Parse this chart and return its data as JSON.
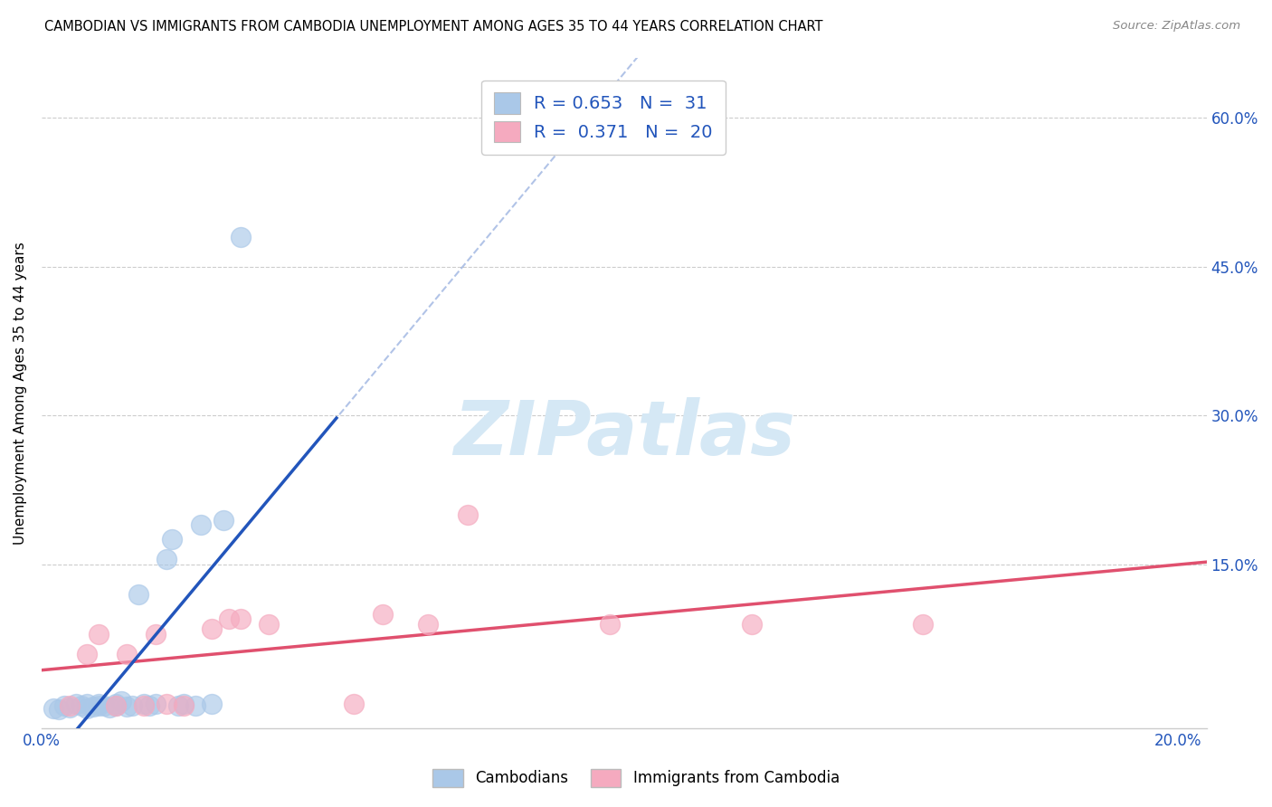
{
  "title": "CAMBODIAN VS IMMIGRANTS FROM CAMBODIA UNEMPLOYMENT AMONG AGES 35 TO 44 YEARS CORRELATION CHART",
  "source": "Source: ZipAtlas.com",
  "ylabel": "Unemployment Among Ages 35 to 44 years",
  "xlim": [
    0.0,
    0.205
  ],
  "ylim": [
    -0.015,
    0.66
  ],
  "xtick_positions": [
    0.0,
    0.05,
    0.1,
    0.15,
    0.2
  ],
  "xtick_labels": [
    "0.0%",
    "",
    "",
    "",
    "20.0%"
  ],
  "ytick_positions": [
    0.0,
    0.15,
    0.3,
    0.45,
    0.6
  ],
  "ytick_labels": [
    "",
    "15.0%",
    "30.0%",
    "45.0%",
    "60.0%"
  ],
  "blue_fill_color": "#aac8e8",
  "blue_edge_color": "#aac8e8",
  "pink_fill_color": "#f5aabf",
  "pink_edge_color": "#f5aabf",
  "blue_line_color": "#2255bb",
  "pink_line_color": "#e0506e",
  "legend_blue_R": "0.653",
  "legend_blue_N": "31",
  "legend_pink_R": "0.371",
  "legend_pink_N": "20",
  "legend_label_blue": "Cambodians",
  "legend_label_pink": "Immigrants from Cambodia",
  "watermark_text": "ZIPatlas",
  "watermark_color": "#d5e8f5",
  "grid_color": "#cccccc",
  "blue_x": [
    0.002,
    0.003,
    0.004,
    0.005,
    0.006,
    0.007,
    0.008,
    0.008,
    0.009,
    0.01,
    0.01,
    0.011,
    0.012,
    0.013,
    0.013,
    0.014,
    0.015,
    0.016,
    0.017,
    0.018,
    0.019,
    0.02,
    0.022,
    0.023,
    0.024,
    0.025,
    0.027,
    0.028,
    0.03,
    0.032,
    0.035
  ],
  "blue_y": [
    0.005,
    0.004,
    0.008,
    0.006,
    0.01,
    0.008,
    0.005,
    0.01,
    0.007,
    0.008,
    0.01,
    0.008,
    0.006,
    0.01,
    0.008,
    0.012,
    0.007,
    0.008,
    0.12,
    0.01,
    0.008,
    0.01,
    0.155,
    0.175,
    0.008,
    0.01,
    0.008,
    0.19,
    0.01,
    0.195,
    0.48
  ],
  "pink_x": [
    0.005,
    0.008,
    0.01,
    0.013,
    0.015,
    0.018,
    0.02,
    0.022,
    0.025,
    0.03,
    0.033,
    0.035,
    0.04,
    0.055,
    0.06,
    0.068,
    0.075,
    0.1,
    0.125,
    0.155
  ],
  "pink_y": [
    0.008,
    0.06,
    0.08,
    0.008,
    0.06,
    0.008,
    0.08,
    0.01,
    0.008,
    0.085,
    0.095,
    0.095,
    0.09,
    0.01,
    0.1,
    0.09,
    0.2,
    0.09,
    0.09,
    0.09
  ]
}
